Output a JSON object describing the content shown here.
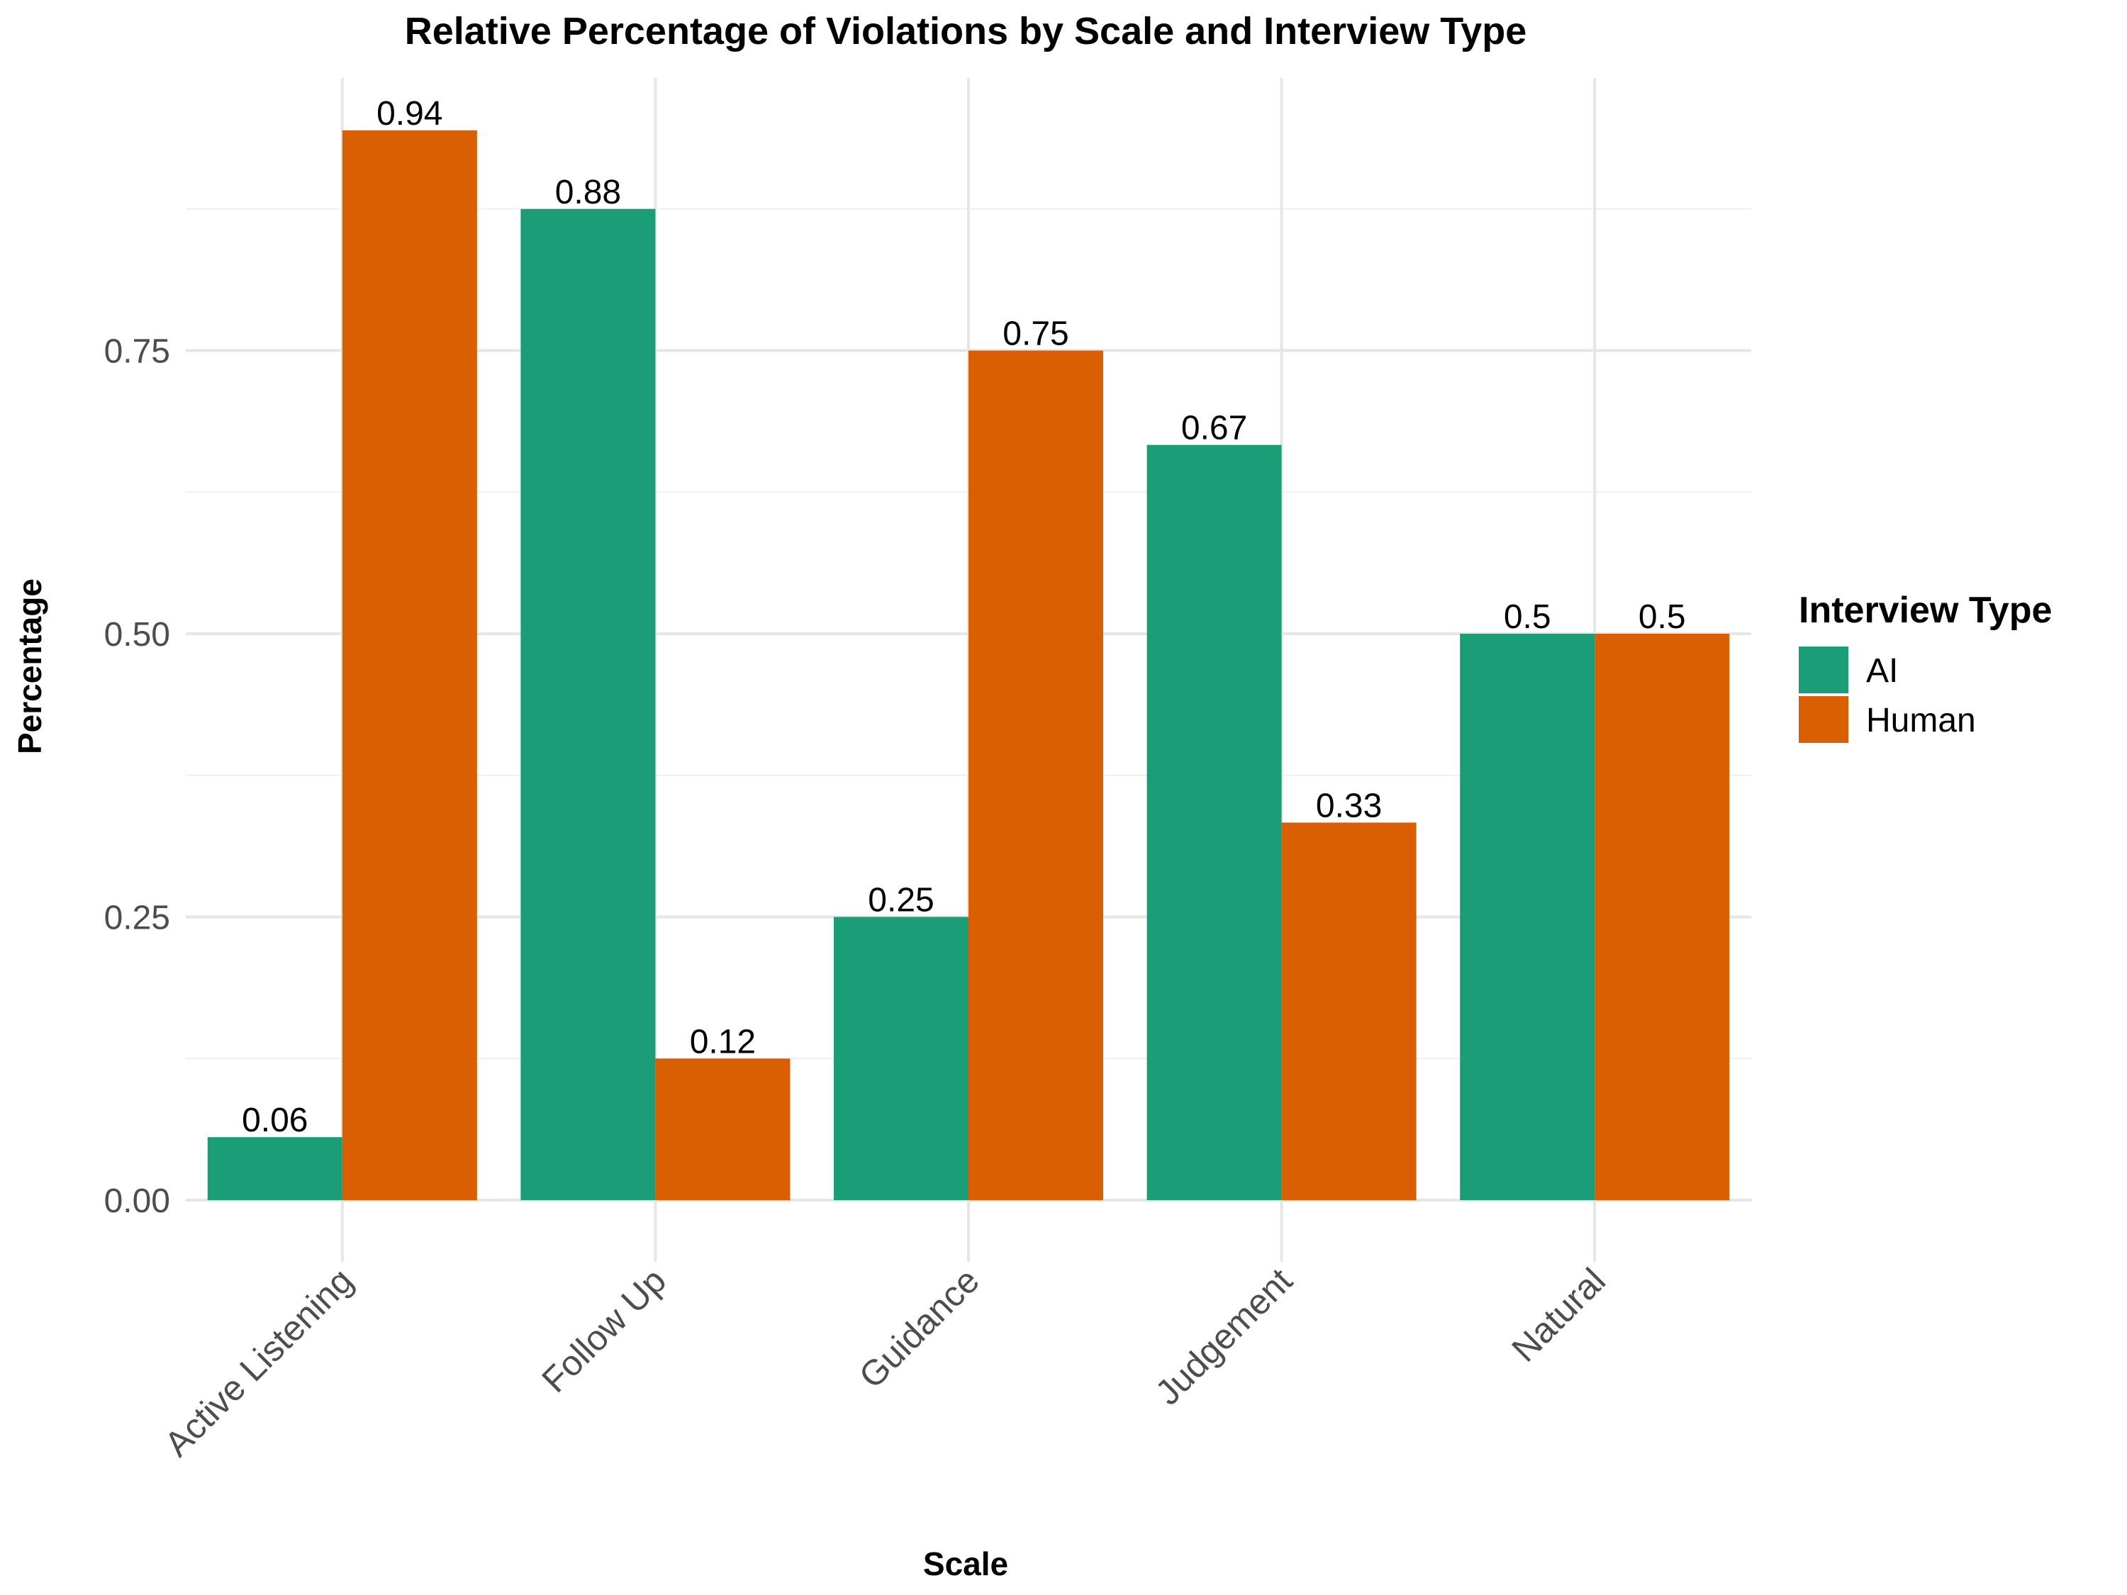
{
  "chart_data": {
    "type": "bar",
    "title": "Relative Percentage of Violations by Scale and Interview Type",
    "xlabel": "Scale",
    "ylabel": "Percentage",
    "categories": [
      "Active Listening",
      "Follow Up",
      "Guidance",
      "Judgement",
      "Natural"
    ],
    "series": [
      {
        "name": "AI",
        "color": "#1b9e77",
        "values": [
          0.0556,
          0.875,
          0.25,
          0.6667,
          0.5
        ],
        "labels": [
          "0.06",
          "0.88",
          "0.25",
          "0.67",
          "0.5"
        ]
      },
      {
        "name": "Human",
        "color": "#d95f02",
        "values": [
          0.9444,
          0.125,
          0.75,
          0.3333,
          0.5
        ],
        "labels": [
          "0.94",
          "0.12",
          "0.75",
          "0.33",
          "0.5"
        ]
      }
    ],
    "yticks": [
      0,
      0.25,
      0.5,
      0.75
    ],
    "ytick_labels": [
      "0.00",
      "0.25",
      "0.50",
      "0.75"
    ],
    "ylim": [
      -0.06,
      1.0
    ],
    "legend": {
      "title": "Interview Type",
      "position": "right"
    },
    "grid": true
  }
}
